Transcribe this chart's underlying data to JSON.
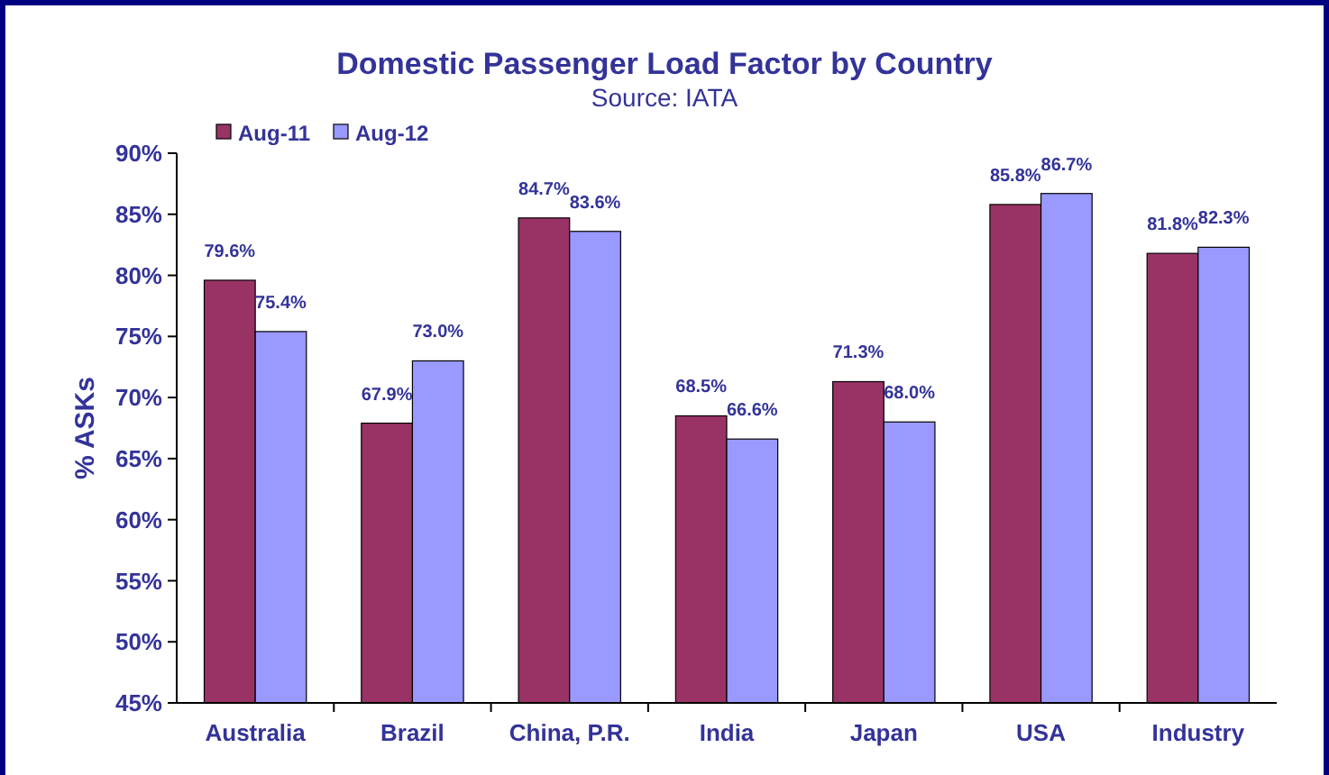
{
  "chart_data": {
    "type": "bar",
    "title": "Domestic Passenger Load Factor by Country",
    "annotations": [
      "Source: IATA"
    ],
    "ylabel": "% ASKs",
    "categories": [
      "Australia",
      "Brazil",
      "China, P.R.",
      "India",
      "Japan",
      "USA",
      "Industry"
    ],
    "series": [
      {
        "name": "Aug-11",
        "color": "#993366",
        "values": [
          79.6,
          67.9,
          84.7,
          68.5,
          71.3,
          85.8,
          81.8
        ],
        "value_labels": [
          "79.6%",
          "67.9%",
          "84.7%",
          "68.5%",
          "71.3%",
          "85.8%",
          "81.8%"
        ]
      },
      {
        "name": "Aug-12",
        "color": "#9999ff",
        "values": [
          75.4,
          73.0,
          83.6,
          66.6,
          68.0,
          86.7,
          82.3
        ],
        "value_labels": [
          "75.4%",
          "73.0%",
          "83.6%",
          "66.6%",
          "68.0%",
          "86.7%",
          "82.3%"
        ]
      }
    ],
    "ylim": [
      45,
      90
    ],
    "yticks": [
      {
        "value": 45,
        "label": "45%"
      },
      {
        "value": 50,
        "label": "50%"
      },
      {
        "value": 55,
        "label": "55%"
      },
      {
        "value": 60,
        "label": "60%"
      },
      {
        "value": 65,
        "label": "65%"
      },
      {
        "value": 70,
        "label": "70%"
      },
      {
        "value": 75,
        "label": "75%"
      },
      {
        "value": 80,
        "label": "80%"
      },
      {
        "value": 85,
        "label": "85%"
      },
      {
        "value": 90,
        "label": "90%"
      }
    ],
    "grid": false,
    "legend": "top left"
  }
}
